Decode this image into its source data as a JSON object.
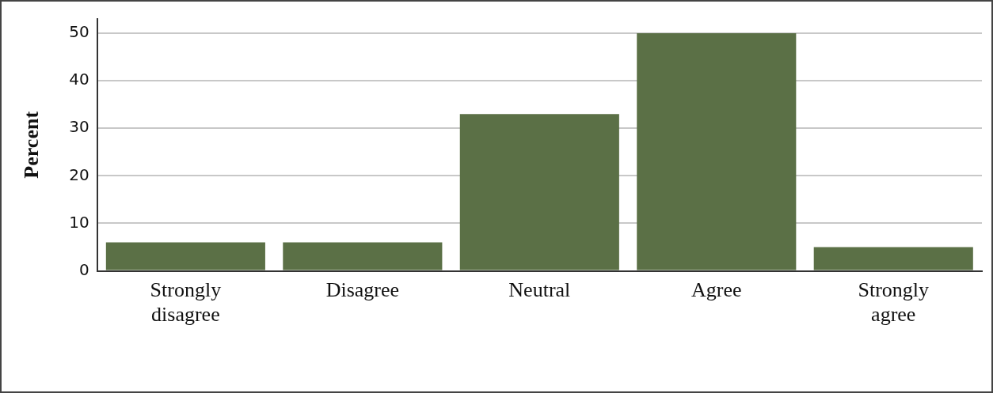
{
  "chart_data": {
    "type": "bar",
    "ylabel": "Percent",
    "categories": [
      "Strongly disagree",
      "Disagree",
      "Neutral",
      "Agree",
      "Strongly agree"
    ],
    "values": [
      6,
      6,
      33,
      50,
      5
    ],
    "color": "#5b7046",
    "ylim": [
      0,
      53
    ],
    "yticks": [
      0,
      10,
      20,
      30,
      40,
      50
    ],
    "grid": "y",
    "legend": false
  }
}
